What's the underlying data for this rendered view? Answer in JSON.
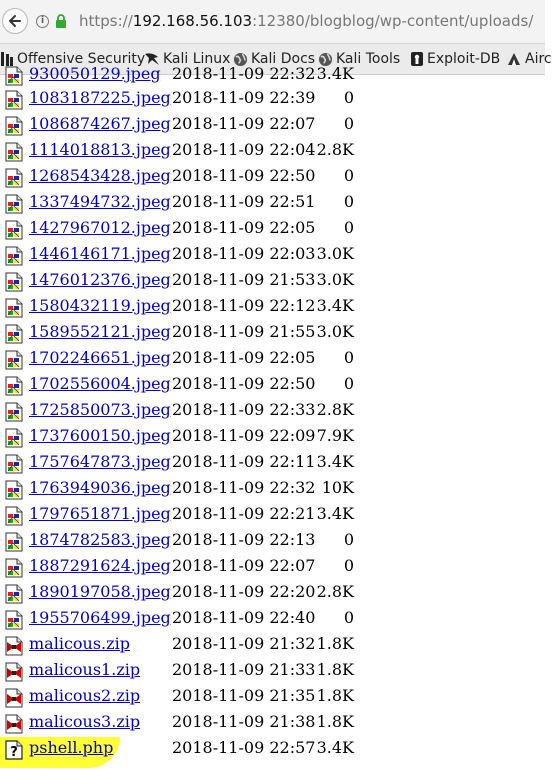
{
  "browser": {
    "url_prefix": "https://",
    "url_host": "192.168.56.103",
    "url_rest": ":12380/blogblog/wp-content/uploads/"
  },
  "bookmarks": [
    {
      "label": "Offensive Security",
      "icon": "kali-dragon-icon"
    },
    {
      "label": "Kali Linux",
      "icon": "kali-dragon-icon"
    },
    {
      "label": "Kali Docs",
      "icon": "globe-icon"
    },
    {
      "label": "Kali Tools",
      "icon": "globe-icon"
    },
    {
      "label": "Exploit-DB",
      "icon": "exploitdb-icon"
    },
    {
      "label": "Airc",
      "icon": "aircrack-icon"
    }
  ],
  "listing": {
    "partial_row": {
      "name": "930050129.jpeg",
      "date": "2018-11-09 22:32",
      "size": "3.4K"
    },
    "rows": [
      {
        "name": "1083187225.jpeg",
        "date": "2018-11-09 22:39",
        "size": "0",
        "type": "image"
      },
      {
        "name": "1086874267.jpeg",
        "date": "2018-11-09 22:07",
        "size": "0",
        "type": "image"
      },
      {
        "name": "1114018813.jpeg",
        "date": "2018-11-09 22:04",
        "size": "2.8K",
        "type": "image"
      },
      {
        "name": "1268543428.jpeg",
        "date": "2018-11-09 22:50",
        "size": "0",
        "type": "image"
      },
      {
        "name": "1337494732.jpeg",
        "date": "2018-11-09 22:51",
        "size": "0",
        "type": "image"
      },
      {
        "name": "1427967012.jpeg",
        "date": "2018-11-09 22:05",
        "size": "0",
        "type": "image"
      },
      {
        "name": "1446146171.jpeg",
        "date": "2018-11-09 22:03",
        "size": "3.0K",
        "type": "image"
      },
      {
        "name": "1476012376.jpeg",
        "date": "2018-11-09 21:53",
        "size": "3.0K",
        "type": "image"
      },
      {
        "name": "1580432119.jpeg",
        "date": "2018-11-09 22:12",
        "size": "3.4K",
        "type": "image"
      },
      {
        "name": "1589552121.jpeg",
        "date": "2018-11-09 21:55",
        "size": "3.0K",
        "type": "image"
      },
      {
        "name": "1702246651.jpeg",
        "date": "2018-11-09 22:05",
        "size": "0",
        "type": "image"
      },
      {
        "name": "1702556004.jpeg",
        "date": "2018-11-09 22:50",
        "size": "0",
        "type": "image"
      },
      {
        "name": "1725850073.jpeg",
        "date": "2018-11-09 22:33",
        "size": "2.8K",
        "type": "image"
      },
      {
        "name": "1737600150.jpeg",
        "date": "2018-11-09 22:09",
        "size": "7.9K",
        "type": "image"
      },
      {
        "name": "1757647873.jpeg",
        "date": "2018-11-09 22:11",
        "size": "3.4K",
        "type": "image"
      },
      {
        "name": "1763949036.jpeg",
        "date": "2018-11-09 22:32",
        "size": "10K",
        "type": "image"
      },
      {
        "name": "1797651871.jpeg",
        "date": "2018-11-09 22:21",
        "size": "3.4K",
        "type": "image"
      },
      {
        "name": "1874782583.jpeg",
        "date": "2018-11-09 22:13",
        "size": "0",
        "type": "image"
      },
      {
        "name": "1887291624.jpeg",
        "date": "2018-11-09 22:07",
        "size": "0",
        "type": "image"
      },
      {
        "name": "1890197058.jpeg",
        "date": "2018-11-09 22:20",
        "size": "2.8K",
        "type": "image"
      },
      {
        "name": "1955706499.jpeg",
        "date": "2018-11-09 22:40",
        "size": "0",
        "type": "image"
      },
      {
        "name": "malicous.zip",
        "date": "2018-11-09 21:32",
        "size": "1.8K",
        "type": "archive"
      },
      {
        "name": "malicous1.zip",
        "date": "2018-11-09 21:33",
        "size": "1.8K",
        "type": "archive"
      },
      {
        "name": "malicous2.zip",
        "date": "2018-11-09 21:35",
        "size": "1.8K",
        "type": "archive"
      },
      {
        "name": "malicous3.zip",
        "date": "2018-11-09 21:38",
        "size": "1.8K",
        "type": "archive"
      },
      {
        "name": "pshell.php",
        "date": "2018-11-09 22:57",
        "size": "3.4K",
        "type": "unknown"
      }
    ]
  },
  "colors": {
    "link": "#0000cc",
    "highlight": "#ffff33"
  }
}
